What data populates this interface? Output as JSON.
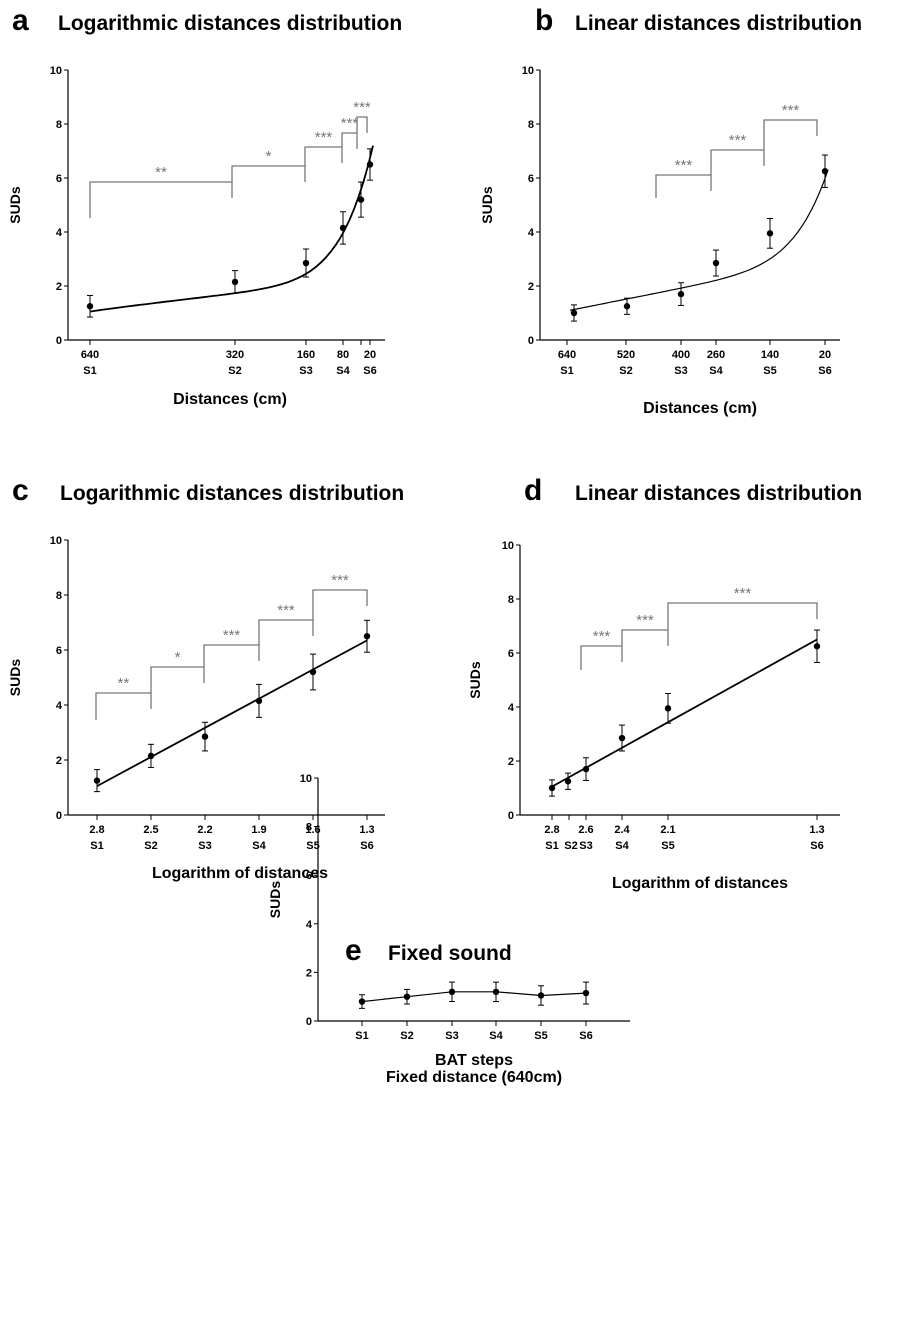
{
  "chart_data": [
    {
      "panel": "a",
      "type": "scatter",
      "title": "Logarithmic distances distribution",
      "xlabel": "Distances (cm)",
      "ylabel": "SUDs",
      "ylim": [
        0,
        10
      ],
      "yticks": [
        0,
        2,
        4,
        6,
        8,
        10
      ],
      "xticks": [
        {
          "x": 640,
          "label": "640",
          "step": "S1"
        },
        {
          "x": 320,
          "label": "320",
          "step": "S2"
        },
        {
          "x": 160,
          "label": "160",
          "step": "S3"
        },
        {
          "x": 80,
          "label": "80",
          "step": "S4"
        },
        {
          "x": 20,
          "label": "20",
          "step": "S6"
        }
      ],
      "points": [
        {
          "x": 640,
          "y": 1.25,
          "err": 0.4
        },
        {
          "x": 320,
          "y": 2.15,
          "err": 0.42
        },
        {
          "x": 160,
          "y": 2.85,
          "err": 0.52
        },
        {
          "x": 80,
          "y": 4.15,
          "err": 0.6
        },
        {
          "x": 40,
          "y": 5.2,
          "err": 0.65
        },
        {
          "x": 20,
          "y": 6.5,
          "err": 0.58
        }
      ],
      "fit": "curve",
      "significance": [
        {
          "label": "**",
          "from": 640,
          "to": 320
        },
        {
          "label": "*",
          "from": 320,
          "to": 160
        },
        {
          "label": "***",
          "from": 160,
          "to": 80
        },
        {
          "label": "***",
          "from": 80,
          "to": 40
        },
        {
          "label": "***",
          "from": 40,
          "to": 20
        }
      ]
    },
    {
      "panel": "b",
      "type": "scatter",
      "title": "Linear distances distribution",
      "xlabel": "Distances (cm)",
      "ylabel": "SUDs",
      "ylim": [
        0,
        10
      ],
      "yticks": [
        0,
        2,
        4,
        6,
        8,
        10
      ],
      "xticks": [
        {
          "x": 640,
          "label": "640",
          "step": "S1"
        },
        {
          "x": 520,
          "label": "520",
          "step": "S2"
        },
        {
          "x": 400,
          "label": "400",
          "step": "S3"
        },
        {
          "x": 260,
          "label": "260",
          "step": "S4"
        },
        {
          "x": 140,
          "label": "140",
          "step": "S5"
        },
        {
          "x": 20,
          "label": "20",
          "step": "S6"
        }
      ],
      "points": [
        {
          "x": 640,
          "y": 1.0,
          "err": 0.3
        },
        {
          "x": 520,
          "y": 1.25,
          "err": 0.3
        },
        {
          "x": 400,
          "y": 1.7,
          "err": 0.42
        },
        {
          "x": 260,
          "y": 2.85,
          "err": 0.48
        },
        {
          "x": 140,
          "y": 3.95,
          "err": 0.55
        },
        {
          "x": 20,
          "y": 6.25,
          "err": 0.6
        }
      ],
      "fit": "curve",
      "significance": [
        {
          "label": "***",
          "from": 400,
          "to": 260
        },
        {
          "label": "***",
          "from": 260,
          "to": 140
        },
        {
          "label": "***",
          "from": 140,
          "to": 20
        }
      ]
    },
    {
      "panel": "c",
      "type": "scatter",
      "title": "Logarithmic distances distribution",
      "xlabel": "Logarithm of distances",
      "ylabel": "SUDs",
      "ylim": [
        0,
        10
      ],
      "yticks": [
        0,
        2,
        4,
        6,
        8,
        10
      ],
      "xticks": [
        {
          "x": 2.8,
          "label": "2.8",
          "step": "S1"
        },
        {
          "x": 2.5,
          "label": "2.5",
          "step": "S2"
        },
        {
          "x": 2.2,
          "label": "2.2",
          "step": "S3"
        },
        {
          "x": 1.9,
          "label": "1.9",
          "step": "S4"
        },
        {
          "x": 1.6,
          "label": "1.6",
          "step": "S5"
        },
        {
          "x": 1.3,
          "label": "1.3",
          "step": "S6"
        }
      ],
      "points": [
        {
          "x": 2.8,
          "y": 1.25,
          "err": 0.4
        },
        {
          "x": 2.5,
          "y": 2.15,
          "err": 0.42
        },
        {
          "x": 2.2,
          "y": 2.85,
          "err": 0.52
        },
        {
          "x": 1.9,
          "y": 4.15,
          "err": 0.6
        },
        {
          "x": 1.6,
          "y": 5.2,
          "err": 0.65
        },
        {
          "x": 1.3,
          "y": 6.5,
          "err": 0.58
        }
      ],
      "fit": "line",
      "significance": [
        {
          "label": "**",
          "from": 2.8,
          "to": 2.5
        },
        {
          "label": "*",
          "from": 2.5,
          "to": 2.2
        },
        {
          "label": "***",
          "from": 2.2,
          "to": 1.9
        },
        {
          "label": "***",
          "from": 1.9,
          "to": 1.6
        },
        {
          "label": "***",
          "from": 1.6,
          "to": 1.3
        }
      ]
    },
    {
      "panel": "d",
      "type": "scatter",
      "title": "Linear distances distribution",
      "xlabel": "Logarithm of distances",
      "ylabel": "SUDs",
      "ylim": [
        0,
        10
      ],
      "yticks": [
        0,
        2,
        4,
        6,
        8,
        10
      ],
      "xticks": [
        {
          "x": 2.8,
          "label": "2.8",
          "step": "S1"
        },
        {
          "x": 2.6,
          "label": "2.6",
          "step": "S3"
        },
        {
          "x": 2.4,
          "label": "2.4",
          "step": "S4"
        },
        {
          "x": 2.1,
          "label": "2.1",
          "step": "S5"
        },
        {
          "x": 1.3,
          "label": "1.3",
          "step": "S6"
        }
      ],
      "extra_steps": [
        {
          "x": 2.72,
          "step": "S2"
        }
      ],
      "points": [
        {
          "x": 2.8,
          "y": 1.0,
          "err": 0.3
        },
        {
          "x": 2.72,
          "y": 1.25,
          "err": 0.3
        },
        {
          "x": 2.6,
          "y": 1.7,
          "err": 0.42
        },
        {
          "x": 2.4,
          "y": 2.85,
          "err": 0.48
        },
        {
          "x": 2.15,
          "y": 3.95,
          "err": 0.55
        },
        {
          "x": 1.3,
          "y": 6.25,
          "err": 0.6
        }
      ],
      "fit": "line",
      "significance": [
        {
          "label": "***",
          "from": 2.6,
          "to": 2.4
        },
        {
          "label": "***",
          "from": 2.4,
          "to": 2.15
        },
        {
          "label": "***",
          "from": 2.15,
          "to": 1.3
        }
      ]
    },
    {
      "panel": "e",
      "type": "line",
      "title": "Fixed sound",
      "xlabel": "BAT steps",
      "xlabel2": "Fixed distance (640cm)",
      "ylabel": "SUDs",
      "ylim": [
        0,
        10
      ],
      "yticks": [
        0,
        2,
        4,
        6,
        8,
        10
      ],
      "categories": [
        "S1",
        "S2",
        "S3",
        "S4",
        "S5",
        "S6"
      ],
      "values": [
        0.8,
        1.0,
        1.2,
        1.2,
        1.05,
        1.15
      ],
      "errors": [
        0.28,
        0.3,
        0.4,
        0.4,
        0.4,
        0.45
      ]
    }
  ]
}
